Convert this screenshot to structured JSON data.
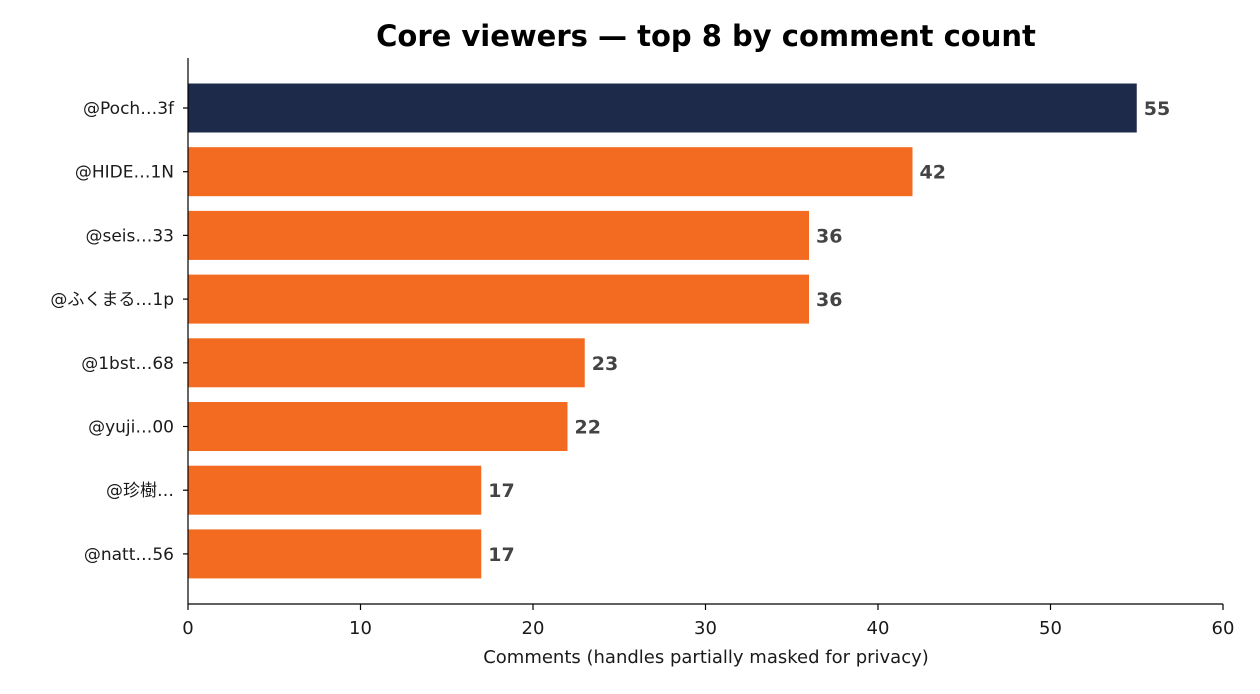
{
  "chart_data": {
    "type": "bar",
    "orientation": "horizontal",
    "title": "Core viewers — top 8 by comment count",
    "xlabel": "Comments (handles partially masked for privacy)",
    "ylabel": "",
    "xlim": [
      0,
      60
    ],
    "xticks": [
      0,
      10,
      20,
      30,
      40,
      50,
      60
    ],
    "grid": false,
    "categories": [
      "@Poch…3f",
      "@HIDE…1N",
      "@seis…33",
      "@ふくまる…1p",
      "@1bst…68",
      "@yuji…00",
      "@珍樹…",
      "@natt…56"
    ],
    "values": [
      55,
      42,
      36,
      36,
      23,
      22,
      17,
      17
    ],
    "highlight_index": 0,
    "colors": {
      "highlight": "#1e2a4a",
      "default": "#f26b21",
      "value_label": "#444444"
    }
  }
}
